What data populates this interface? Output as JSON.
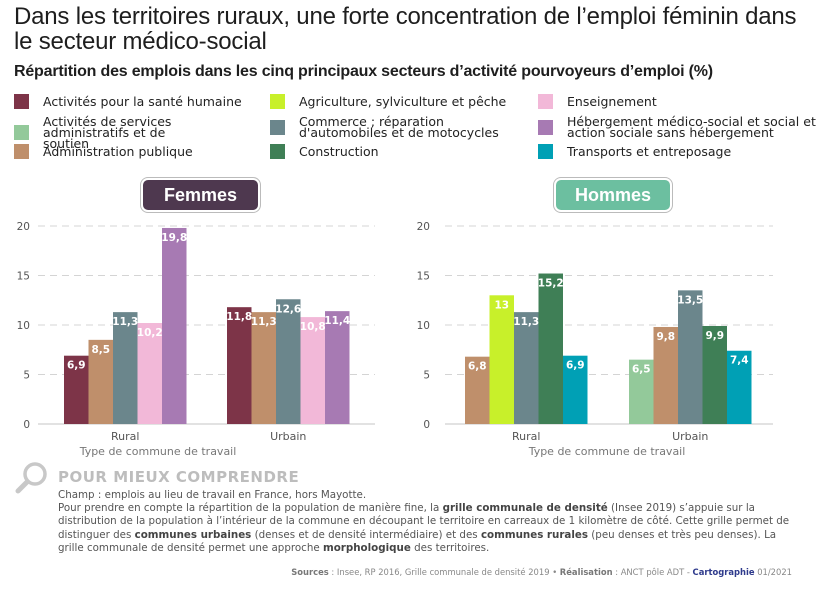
{
  "title": "Dans les territoires ruraux, une forte concentration de l’emploi féminin dans le secteur médico-social",
  "subtitle": "Répartition des emplois dans les cinq principaux secteurs d’activité pourvoyeurs d’emploi (%)",
  "legend": [
    {
      "label": "Activités pour la santé humaine",
      "color": "#7d3448"
    },
    {
      "label": "Activités de services administratifs et de soutien",
      "color": "#93c99a"
    },
    {
      "label": "Administration publique",
      "color": "#bf8f6b"
    },
    {
      "label": "Agriculture, sylviculture et pêche",
      "color": "#c8f02a"
    },
    {
      "label": "Commerce ; réparation d'automobiles et de motocycles",
      "color": "#6b868c"
    },
    {
      "label": "Construction",
      "color": "#3f7f56"
    },
    {
      "label": "Enseignement",
      "color": "#f2b8d8"
    },
    {
      "label": "Hébergement médico-social et social et action sociale sans hébergement",
      "color": "#a77ab3"
    },
    {
      "label": "Transports et entreposage",
      "color": "#00a0b5"
    }
  ],
  "chart_data": [
    {
      "type": "bar",
      "title": "Femmes",
      "title_color": "#4e384f",
      "xlabel": "Type de commune de travail",
      "ylabel": "",
      "ylim": [
        0,
        20
      ],
      "yticks": [
        "0",
        "5",
        "10",
        "15",
        "20"
      ],
      "grid": true,
      "categories": [
        "Rural",
        "Urbain"
      ],
      "groups": [
        {
          "category": "Rural",
          "bars": [
            {
              "sector": "Activités pour la santé humaine",
              "value": 6.9,
              "label": "6,9",
              "color": "#7d3448"
            },
            {
              "sector": "Administration publique",
              "value": 8.5,
              "label": "8,5",
              "color": "#bf8f6b"
            },
            {
              "sector": "Commerce ; réparation d'automobiles et de motocycles",
              "value": 11.3,
              "label": "11,3",
              "color": "#6b868c"
            },
            {
              "sector": "Enseignement",
              "value": 10.2,
              "label": "10,2",
              "color": "#f2b8d8"
            },
            {
              "sector": "Hébergement médico-social et social et action sociale sans hébergement",
              "value": 19.8,
              "label": "19,8",
              "color": "#a77ab3"
            }
          ]
        },
        {
          "category": "Urbain",
          "bars": [
            {
              "sector": "Activités pour la santé humaine",
              "value": 11.8,
              "label": "11,8",
              "color": "#7d3448"
            },
            {
              "sector": "Administration publique",
              "value": 11.3,
              "label": "11,3",
              "color": "#bf8f6b"
            },
            {
              "sector": "Commerce ; réparation d'automobiles et de motocycles",
              "value": 12.6,
              "label": "12,6",
              "color": "#6b868c"
            },
            {
              "sector": "Enseignement",
              "value": 10.8,
              "label": "10,8",
              "color": "#f2b8d8"
            },
            {
              "sector": "Hébergement médico-social et social et action sociale sans hébergement",
              "value": 11.4,
              "label": "11,4",
              "color": "#a77ab3"
            }
          ]
        }
      ]
    },
    {
      "type": "bar",
      "title": "Hommes",
      "title_color": "#6cbfa0",
      "xlabel": "Type de commune de travail",
      "ylabel": "",
      "ylim": [
        0,
        20
      ],
      "yticks": [
        "0",
        "5",
        "10",
        "15",
        "20"
      ],
      "grid": true,
      "categories": [
        "Rural",
        "Urbain"
      ],
      "groups": [
        {
          "category": "Rural",
          "bars": [
            {
              "sector": "Administration publique",
              "value": 6.8,
              "label": "6,8",
              "color": "#bf8f6b"
            },
            {
              "sector": "Agriculture, sylviculture et pêche",
              "value": 13,
              "label": "13",
              "color": "#c8f02a"
            },
            {
              "sector": "Commerce ; réparation d'automobiles et de motocycles",
              "value": 11.3,
              "label": "11,3",
              "color": "#6b868c"
            },
            {
              "sector": "Construction",
              "value": 15.2,
              "label": "15,2",
              "color": "#3f7f56"
            },
            {
              "sector": "Transports et entreposage",
              "value": 6.9,
              "label": "6,9",
              "color": "#00a0b5"
            }
          ]
        },
        {
          "category": "Urbain",
          "bars": [
            {
              "sector": "Activités de services administratifs et de soutien",
              "value": 6.5,
              "label": "6,5",
              "color": "#93c99a"
            },
            {
              "sector": "Administration publique",
              "value": 9.8,
              "label": "9,8",
              "color": "#bf8f6b"
            },
            {
              "sector": "Commerce ; réparation d'automobiles et de motocycles",
              "value": 13.5,
              "label": "13,5",
              "color": "#6b868c"
            },
            {
              "sector": "Construction",
              "value": 9.9,
              "label": "9,9",
              "color": "#3f7f56"
            },
            {
              "sector": "Transports et entreposage",
              "value": 7.4,
              "label": "7,4",
              "color": "#00a0b5"
            }
          ]
        }
      ]
    }
  ],
  "info": {
    "icon": "magnifier-icon",
    "title": "POUR MIEUX COMPRENDRE",
    "line1": "Champ : emplois au lieu de travail en France, hors Mayotte.",
    "p_a": "Pour prendre en compte la répartition de la population de manière fine, la ",
    "p_b": "grille communale de densité",
    "p_c": " (Insee 2019) s’appuie sur la distribution de la population à l’intérieur de la commune en découpant le territoire en carreaux de 1 kilomètre de côté. Cette grille permet de distinguer des ",
    "p_d": "communes urbaines",
    "p_e": " (denses et de densité intermédiaire) et des ",
    "p_f": "communes rurales",
    "p_g": " (peu denses et très peu denses). La grille communale de densité permet une approche ",
    "p_h": "morphologique",
    "p_i": " des territoires."
  },
  "footer": {
    "sources_label": "Sources",
    "sources_text": " : Insee, RP 2016, Grille communale de densité 2019 • ",
    "realisation_label": "Réalisation",
    "realisation_text": " : ANCT pôle ADT - ",
    "carto_label": "Cartographie",
    "carto_text": " 01/2021"
  }
}
